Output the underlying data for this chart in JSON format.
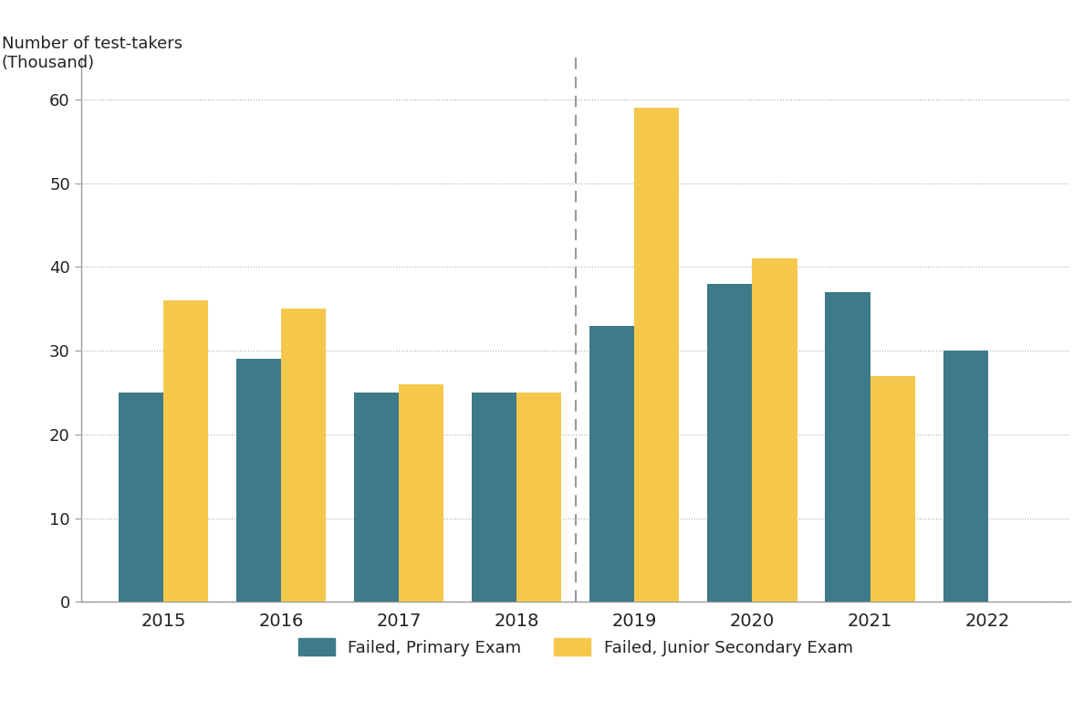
{
  "years": [
    2015,
    2016,
    2017,
    2018,
    2019,
    2020,
    2021,
    2022
  ],
  "primary_failed": [
    25,
    29,
    25,
    25,
    33,
    38,
    37,
    30
  ],
  "secondary_failed": [
    36,
    35,
    26,
    25,
    59,
    41,
    27,
    null
  ],
  "primary_color": "#3d7a8a",
  "secondary_color": "#f5c84c",
  "ylabel_line1": "Number of test-takers",
  "ylabel_line2": "(Thousand)",
  "ylim": [
    0,
    65
  ],
  "yticks": [
    0,
    10,
    20,
    30,
    40,
    50,
    60
  ],
  "bar_width": 0.38,
  "legend_primary": "Failed, Primary Exam",
  "legend_secondary": "Failed, Junior Secondary Exam",
  "background_color": "#ffffff",
  "grid_color": "#aaaaaa",
  "spine_color": "#999999",
  "font_color": "#222222",
  "tick_color": "#555555"
}
